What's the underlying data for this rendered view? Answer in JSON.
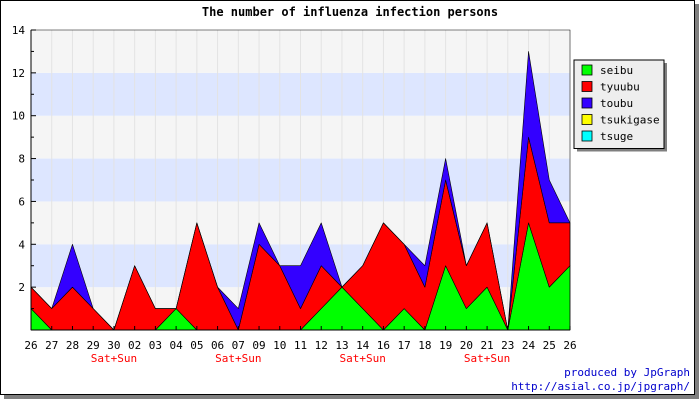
{
  "chart_data": {
    "type": "area",
    "stacked": true,
    "title": "The number of influenza infection persons",
    "xlabel": "",
    "ylabel": "",
    "ylim": [
      0,
      14
    ],
    "yticks": [
      2,
      4,
      6,
      8,
      10,
      12,
      14
    ],
    "grid": true,
    "legend_position": "top-right",
    "categories": [
      "26",
      "27",
      "28",
      "29",
      "30",
      "02",
      "03",
      "04",
      "05",
      "06",
      "07",
      "09",
      "10",
      "11",
      "12",
      "13",
      "14",
      "16",
      "17",
      "18",
      "19",
      "20",
      "21",
      "23",
      "24",
      "25",
      "26"
    ],
    "category_notes": {
      "4": "Sat+Sun",
      "10": "Sat+Sun",
      "16": "Sat+Sun",
      "22": "Sat+Sun"
    },
    "series": [
      {
        "name": "seibu",
        "color": "#00ff00",
        "values": [
          1,
          0,
          0,
          0,
          0,
          0,
          0,
          1,
          0,
          0,
          0,
          0,
          0,
          0,
          1,
          2,
          1,
          0,
          1,
          0,
          3,
          1,
          2,
          0,
          5,
          2,
          3
        ]
      },
      {
        "name": "tyuubu",
        "color": "#ff0000",
        "values": [
          1,
          1,
          2,
          1,
          0,
          3,
          1,
          0,
          5,
          2,
          0,
          4,
          3,
          1,
          2,
          0,
          2,
          5,
          3,
          2,
          4,
          2,
          3,
          0,
          4,
          3,
          2
        ]
      },
      {
        "name": "toubu",
        "color": "#3300ff",
        "values": [
          0,
          0,
          2,
          0,
          0,
          0,
          0,
          0,
          0,
          0,
          1,
          1,
          0,
          2,
          2,
          0,
          0,
          0,
          0,
          1,
          1,
          0,
          0,
          0,
          4,
          2,
          0
        ]
      },
      {
        "name": "tsukigase",
        "color": "#ffff00",
        "values": [
          0,
          0,
          0,
          0,
          0,
          0,
          0,
          0,
          0,
          0,
          0,
          0,
          0,
          0,
          0,
          0,
          0,
          0,
          0,
          0,
          0,
          0,
          0,
          0,
          0,
          0,
          0
        ]
      },
      {
        "name": "tsuge",
        "color": "#00ffff",
        "values": [
          0,
          0,
          0,
          0,
          0,
          0,
          0,
          0,
          0,
          0,
          0,
          0,
          0,
          0,
          0,
          0,
          0,
          0,
          0,
          0,
          0,
          0,
          0,
          0,
          0,
          0,
          0
        ]
      }
    ]
  },
  "colors": {
    "band_light": "#f5f5f5",
    "band_blue": "#dde6ff",
    "note_color": "#ff0000",
    "credit_color": "#0000cc"
  },
  "credits": {
    "line1": "produced by JpGraph",
    "line2": "http://asial.co.jp/jpgraph/"
  }
}
